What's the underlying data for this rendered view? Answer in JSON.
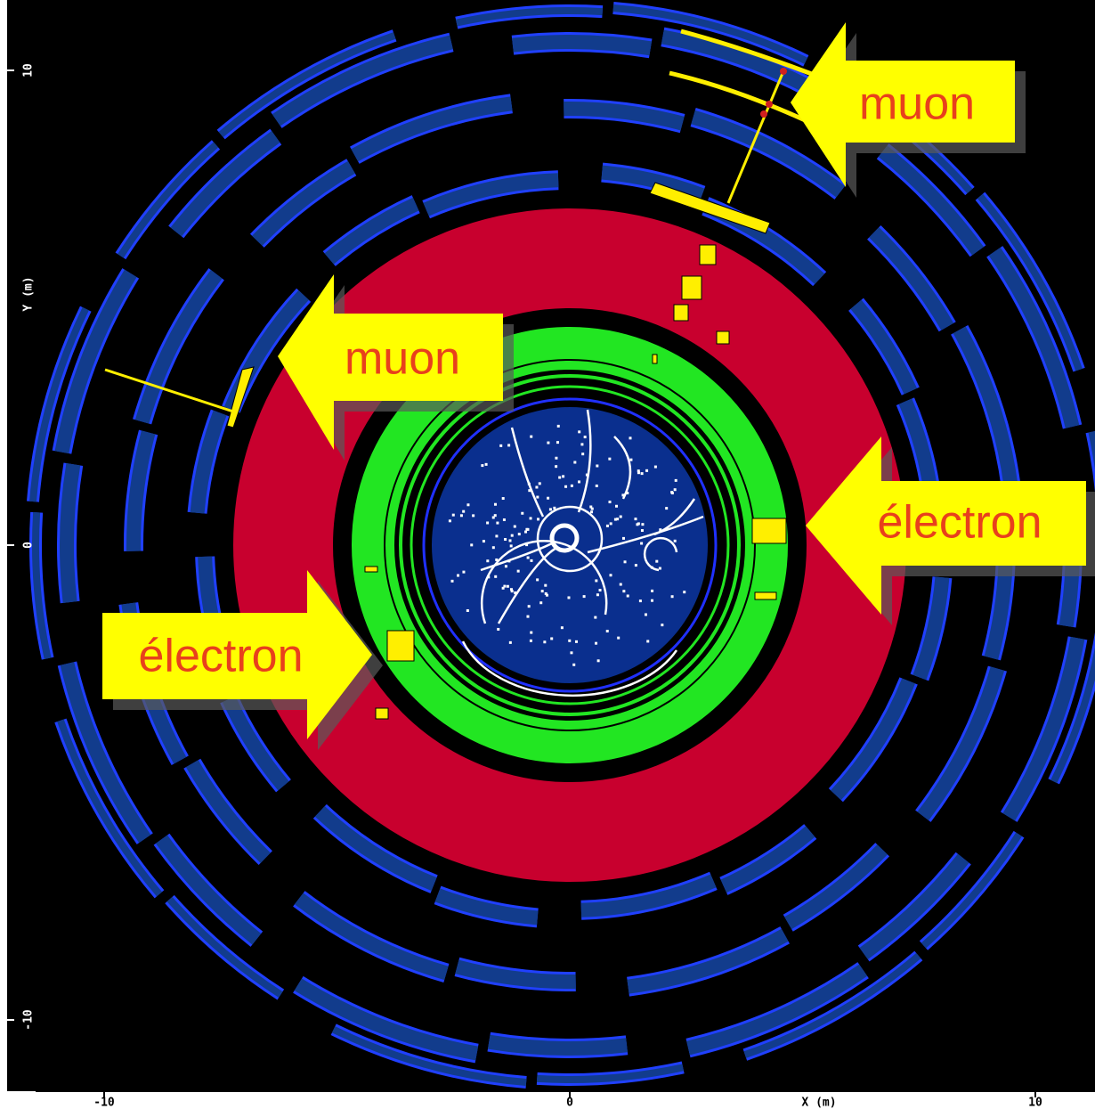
{
  "axes": {
    "x": {
      "label": "X (m)",
      "ticks": [
        -10,
        0,
        10
      ]
    },
    "y": {
      "label": "Y (m)",
      "ticks": [
        10,
        0,
        -10
      ]
    }
  },
  "annotations": [
    "muon",
    "muon",
    "électron",
    "électron"
  ]
}
